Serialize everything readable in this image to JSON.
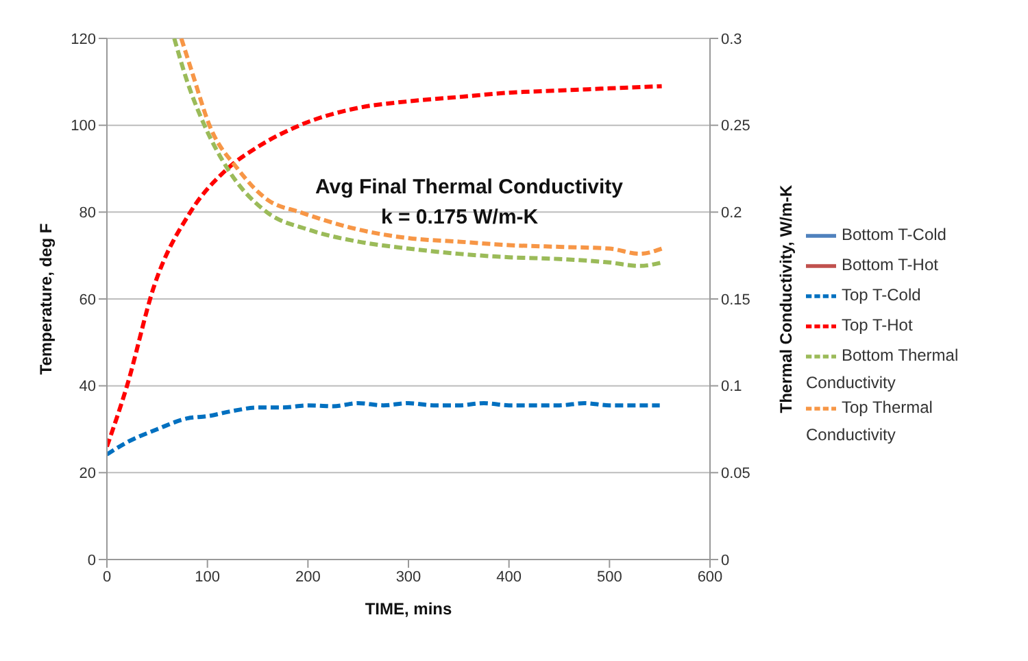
{
  "chart_data": {
    "type": "line",
    "xlabel": "TIME, mins",
    "ylabel": "Temperature, deg F",
    "y2label": "Thermal Conductivity, W/m-K",
    "xlim": [
      0,
      600
    ],
    "xticks": [
      0,
      100,
      200,
      300,
      400,
      500,
      600
    ],
    "ylim": [
      0,
      120
    ],
    "yticks": [
      0,
      20,
      40,
      60,
      80,
      100,
      120
    ],
    "y2lim": [
      0,
      0.3
    ],
    "y2ticks": [
      0,
      0.05,
      0.1,
      0.15,
      0.2,
      0.25,
      0.3
    ],
    "grid": "y",
    "legend": "right",
    "marker": "none",
    "annotations": [
      "Avg Final Thermal Conductivity",
      "k = 0.175 W/m-K"
    ],
    "series": [
      {
        "name": "Bottom T-Cold",
        "color": "#4f81bd",
        "line_style": "solid"
      },
      {
        "name": "Bottom T-Hot",
        "color": "#c0504d",
        "line_style": "solid"
      },
      {
        "name": "Top T-Cold",
        "color": "#0070c0",
        "line_style": "dashed",
        "x": [
          0,
          20,
          50,
          80,
          100,
          125,
          150,
          175,
          200,
          225,
          250,
          275,
          300,
          325,
          350,
          375,
          400,
          425,
          450,
          475,
          500,
          525,
          550
        ],
        "values": [
          24.2,
          27,
          30,
          32.5,
          33,
          34.2,
          35,
          35,
          35.5,
          35.3,
          36,
          35.5,
          36,
          35.5,
          35.5,
          36,
          35.5,
          35.5,
          35.5,
          36,
          35.5,
          35.5,
          35.5
        ]
      },
      {
        "name": "Top T-Hot",
        "color": "#ff0000",
        "line_style": "dashed",
        "x": [
          0,
          20,
          47,
          83,
          120,
          150,
          192,
          250,
          300,
          350,
          400,
          450,
          500,
          552
        ],
        "values": [
          26,
          40,
          63,
          80,
          90,
          95,
          100,
          104,
          105.5,
          106.5,
          107.5,
          108,
          108.5,
          109
        ]
      },
      {
        "name": "Bottom Thermal Conductivity",
        "color": "#9bbb59",
        "line_style": "dashed",
        "axis": "y2",
        "x": [
          67,
          80,
          97,
          120,
          159,
          200,
          250,
          300,
          350,
          400,
          450,
          500,
          530,
          552
        ],
        "values": [
          0.3,
          0.275,
          0.25,
          0.225,
          0.2,
          0.19,
          0.183,
          0.179,
          0.176,
          0.174,
          0.173,
          0.171,
          0.169,
          0.171
        ]
      },
      {
        "name": "Top Thermal Conductivity",
        "color": "#f79646",
        "line_style": "dashed",
        "axis": "y2",
        "x": [
          74,
          85,
          102,
          130,
          160,
          192,
          250,
          300,
          350,
          400,
          450,
          500,
          530,
          552
        ],
        "values": [
          0.3,
          0.28,
          0.25,
          0.225,
          0.207,
          0.2,
          0.19,
          0.185,
          0.183,
          0.181,
          0.18,
          0.179,
          0.176,
          0.179
        ]
      }
    ]
  }
}
